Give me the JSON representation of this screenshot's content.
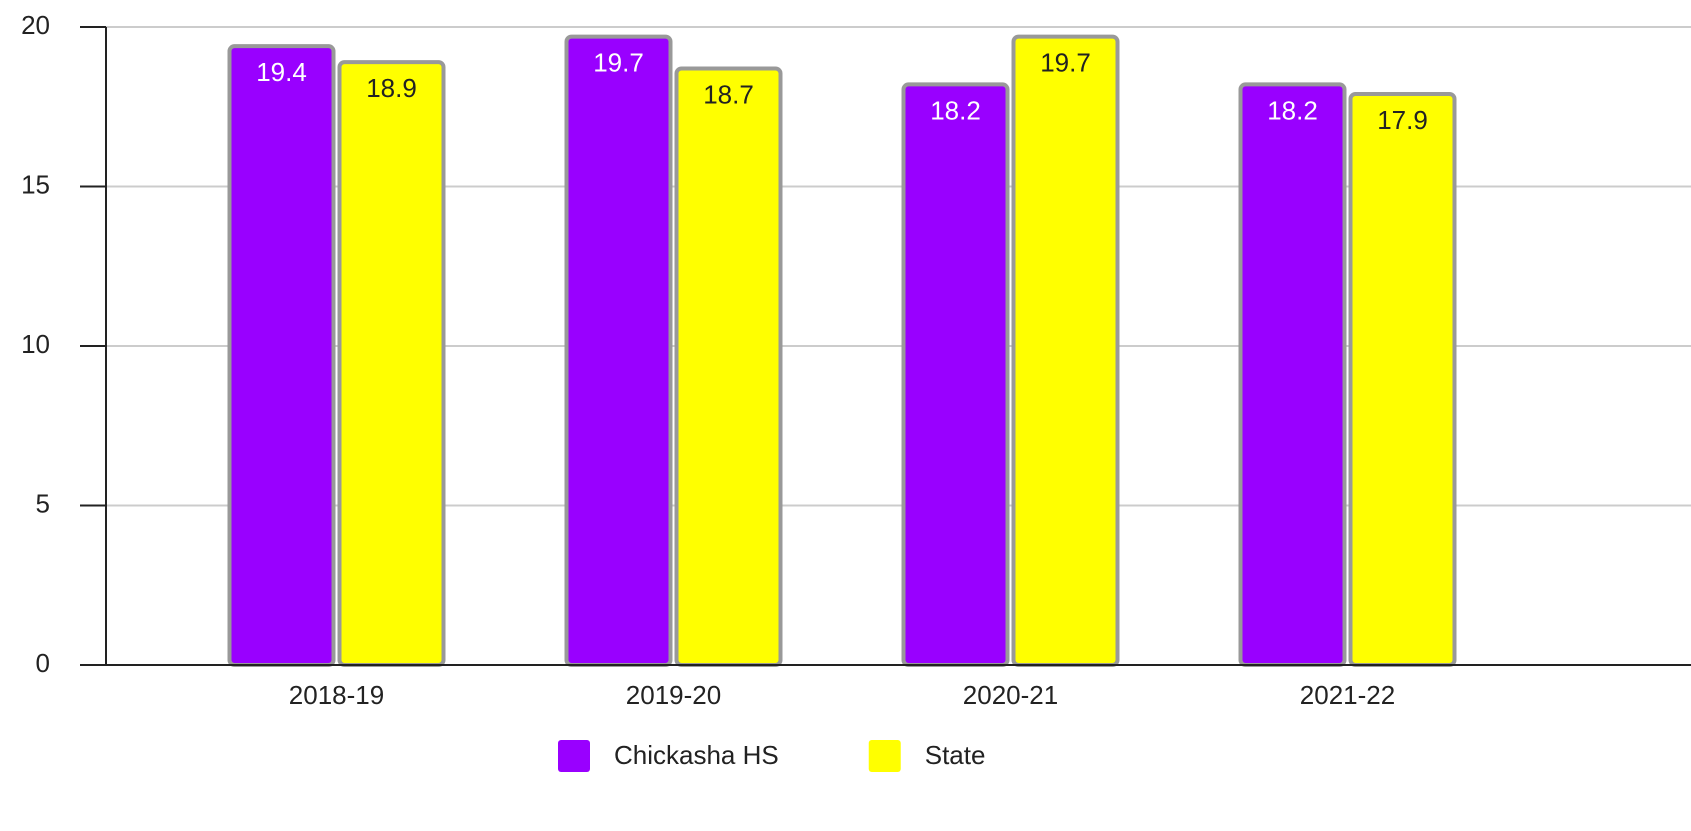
{
  "chart_data": {
    "type": "bar",
    "categories": [
      "2018-19",
      "2019-20",
      "2020-21",
      "2021-22"
    ],
    "series": [
      {
        "name": "Chickasha HS",
        "color": "#9900ff",
        "values": [
          19.4,
          19.7,
          18.2,
          18.2
        ]
      },
      {
        "name": "State",
        "color": "#ffff00",
        "values": [
          18.9,
          18.7,
          19.7,
          17.9
        ]
      }
    ],
    "ylim": [
      0,
      20
    ],
    "yticks": [
      0,
      5,
      10,
      15,
      20
    ],
    "grid": true,
    "legend": "bottom"
  }
}
